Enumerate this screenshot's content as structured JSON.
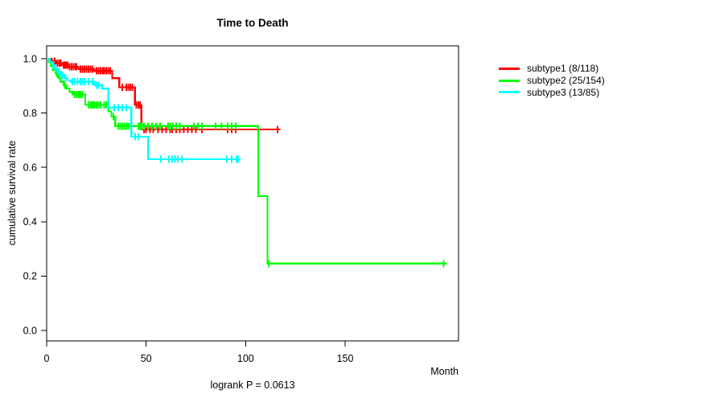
{
  "title": "Time to Death",
  "footer": "logrank P = 0.0613",
  "chart_data": {
    "type": "line",
    "chart_kind": "kaplan-meier-survival-step-curves",
    "title": "Time to Death",
    "xlabel": "Month",
    "ylabel": "cumulative survival rate",
    "annotation": "logrank P = 0.0613",
    "xlim": [
      0,
      207
    ],
    "ylim": [
      0.0,
      1.0
    ],
    "x_ticks": [
      0,
      50,
      100,
      150
    ],
    "y_ticks": [
      "0.0",
      "0.2",
      "0.4",
      "0.6",
      "0.8",
      "1.0"
    ],
    "grid": false,
    "legend_position": "right-outside",
    "axis_color": "#000000",
    "series": [
      {
        "name": "subtype1 (8/118)",
        "color": "#ff0000",
        "end": 117.5,
        "steps": [
          [
            0,
            1.0
          ],
          [
            2.5,
            0.991
          ],
          [
            5,
            0.983
          ],
          [
            8,
            0.976
          ],
          [
            11,
            0.97
          ],
          [
            16,
            0.962
          ],
          [
            24,
            0.955
          ],
          [
            33,
            0.928
          ],
          [
            36.5,
            0.895
          ],
          [
            44.4,
            0.83
          ],
          [
            47.6,
            0.74
          ]
        ],
        "censors": [
          [
            4,
            0.991
          ],
          [
            5.5,
            0.983
          ],
          [
            6.5,
            0.983
          ],
          [
            7,
            0.983
          ],
          [
            8.5,
            0.976
          ],
          [
            9,
            0.976
          ],
          [
            10,
            0.976
          ],
          [
            10.5,
            0.976
          ],
          [
            11.5,
            0.97
          ],
          [
            12.5,
            0.97
          ],
          [
            13.5,
            0.97
          ],
          [
            14.5,
            0.97
          ],
          [
            15,
            0.97
          ],
          [
            17,
            0.962
          ],
          [
            18,
            0.962
          ],
          [
            19,
            0.962
          ],
          [
            20,
            0.962
          ],
          [
            21,
            0.962
          ],
          [
            22,
            0.962
          ],
          [
            23,
            0.962
          ],
          [
            25,
            0.955
          ],
          [
            26,
            0.955
          ],
          [
            27,
            0.955
          ],
          [
            28,
            0.955
          ],
          [
            29,
            0.955
          ],
          [
            30,
            0.955
          ],
          [
            31,
            0.955
          ],
          [
            32,
            0.955
          ],
          [
            38,
            0.895
          ],
          [
            40,
            0.895
          ],
          [
            41,
            0.895
          ],
          [
            42,
            0.895
          ],
          [
            43,
            0.895
          ],
          [
            45,
            0.83
          ],
          [
            46,
            0.83
          ],
          [
            47,
            0.83
          ],
          [
            49,
            0.74
          ],
          [
            50,
            0.74
          ],
          [
            52,
            0.74
          ],
          [
            53.5,
            0.74
          ],
          [
            56,
            0.74
          ],
          [
            58,
            0.74
          ],
          [
            60,
            0.74
          ],
          [
            62,
            0.74
          ],
          [
            63,
            0.74
          ],
          [
            65,
            0.74
          ],
          [
            67,
            0.74
          ],
          [
            69,
            0.74
          ],
          [
            71,
            0.74
          ],
          [
            73,
            0.74
          ],
          [
            75,
            0.74
          ],
          [
            78,
            0.74
          ],
          [
            91,
            0.74
          ],
          [
            93,
            0.74
          ],
          [
            95,
            0.74
          ],
          [
            116,
            0.74
          ]
        ]
      },
      {
        "name": "subtype2 (25/154)",
        "color": "#00ff00",
        "end": 201,
        "steps": [
          [
            0,
            1.0
          ],
          [
            1,
            0.987
          ],
          [
            2,
            0.974
          ],
          [
            3,
            0.958
          ],
          [
            4.5,
            0.945
          ],
          [
            6,
            0.928
          ],
          [
            7,
            0.915
          ],
          [
            8.5,
            0.902
          ],
          [
            10,
            0.89
          ],
          [
            11.5,
            0.878
          ],
          [
            13,
            0.868
          ],
          [
            19.4,
            0.83
          ],
          [
            31,
            0.806
          ],
          [
            32.5,
            0.787
          ],
          [
            34.5,
            0.752
          ],
          [
            106.3,
            0.494
          ],
          [
            111,
            0.246
          ]
        ],
        "censors": [
          [
            5,
            0.945
          ],
          [
            9,
            0.902
          ],
          [
            14,
            0.868
          ],
          [
            15,
            0.868
          ],
          [
            16,
            0.868
          ],
          [
            16.5,
            0.868
          ],
          [
            17,
            0.868
          ],
          [
            18,
            0.868
          ],
          [
            21,
            0.83
          ],
          [
            22,
            0.83
          ],
          [
            22.5,
            0.83
          ],
          [
            23,
            0.83
          ],
          [
            23.5,
            0.83
          ],
          [
            24,
            0.83
          ],
          [
            25,
            0.83
          ],
          [
            26,
            0.83
          ],
          [
            27,
            0.83
          ],
          [
            29,
            0.83
          ],
          [
            30,
            0.83
          ],
          [
            33.5,
            0.787
          ],
          [
            36,
            0.752
          ],
          [
            37,
            0.752
          ],
          [
            38,
            0.752
          ],
          [
            39,
            0.752
          ],
          [
            40,
            0.752
          ],
          [
            41,
            0.752
          ],
          [
            46,
            0.752
          ],
          [
            47,
            0.752
          ],
          [
            47.5,
            0.752
          ],
          [
            48,
            0.752
          ],
          [
            49,
            0.752
          ],
          [
            51,
            0.752
          ],
          [
            53,
            0.752
          ],
          [
            55,
            0.752
          ],
          [
            57,
            0.752
          ],
          [
            61,
            0.752
          ],
          [
            62,
            0.752
          ],
          [
            63.5,
            0.752
          ],
          [
            65,
            0.752
          ],
          [
            67,
            0.752
          ],
          [
            74,
            0.752
          ],
          [
            76,
            0.752
          ],
          [
            78,
            0.752
          ],
          [
            85,
            0.752
          ],
          [
            88,
            0.752
          ],
          [
            91,
            0.752
          ],
          [
            93,
            0.752
          ],
          [
            95,
            0.752
          ],
          [
            111.5,
            0.246
          ],
          [
            199.5,
            0.246
          ]
        ]
      },
      {
        "name": "subtype3 (13/85)",
        "color": "#00ffff",
        "end": 97.5,
        "steps": [
          [
            0,
            1.0
          ],
          [
            1.5,
            0.988
          ],
          [
            3,
            0.976
          ],
          [
            4,
            0.964
          ],
          [
            5.5,
            0.952
          ],
          [
            7,
            0.94
          ],
          [
            9,
            0.929
          ],
          [
            10.5,
            0.92
          ],
          [
            12,
            0.915
          ],
          [
            24,
            0.903
          ],
          [
            27.8,
            0.89
          ],
          [
            31,
            0.82
          ],
          [
            42.6,
            0.713
          ],
          [
            51,
            0.63
          ]
        ],
        "censors": [
          [
            3.5,
            0.976
          ],
          [
            4.5,
            0.964
          ],
          [
            6,
            0.952
          ],
          [
            7.5,
            0.94
          ],
          [
            8,
            0.94
          ],
          [
            9.5,
            0.929
          ],
          [
            13,
            0.915
          ],
          [
            14,
            0.915
          ],
          [
            15.5,
            0.915
          ],
          [
            17,
            0.915
          ],
          [
            18,
            0.915
          ],
          [
            19,
            0.915
          ],
          [
            21,
            0.915
          ],
          [
            23,
            0.915
          ],
          [
            25,
            0.903
          ],
          [
            26,
            0.903
          ],
          [
            34,
            0.82
          ],
          [
            36,
            0.82
          ],
          [
            38,
            0.82
          ],
          [
            40,
            0.82
          ],
          [
            44.5,
            0.713
          ],
          [
            46,
            0.713
          ],
          [
            57.5,
            0.63
          ],
          [
            61.5,
            0.63
          ],
          [
            63,
            0.63
          ],
          [
            64.5,
            0.63
          ],
          [
            66,
            0.63
          ],
          [
            68,
            0.63
          ],
          [
            90.5,
            0.63
          ],
          [
            93,
            0.63
          ],
          [
            95.5,
            0.63
          ],
          [
            96.3,
            0.63
          ]
        ]
      }
    ]
  }
}
